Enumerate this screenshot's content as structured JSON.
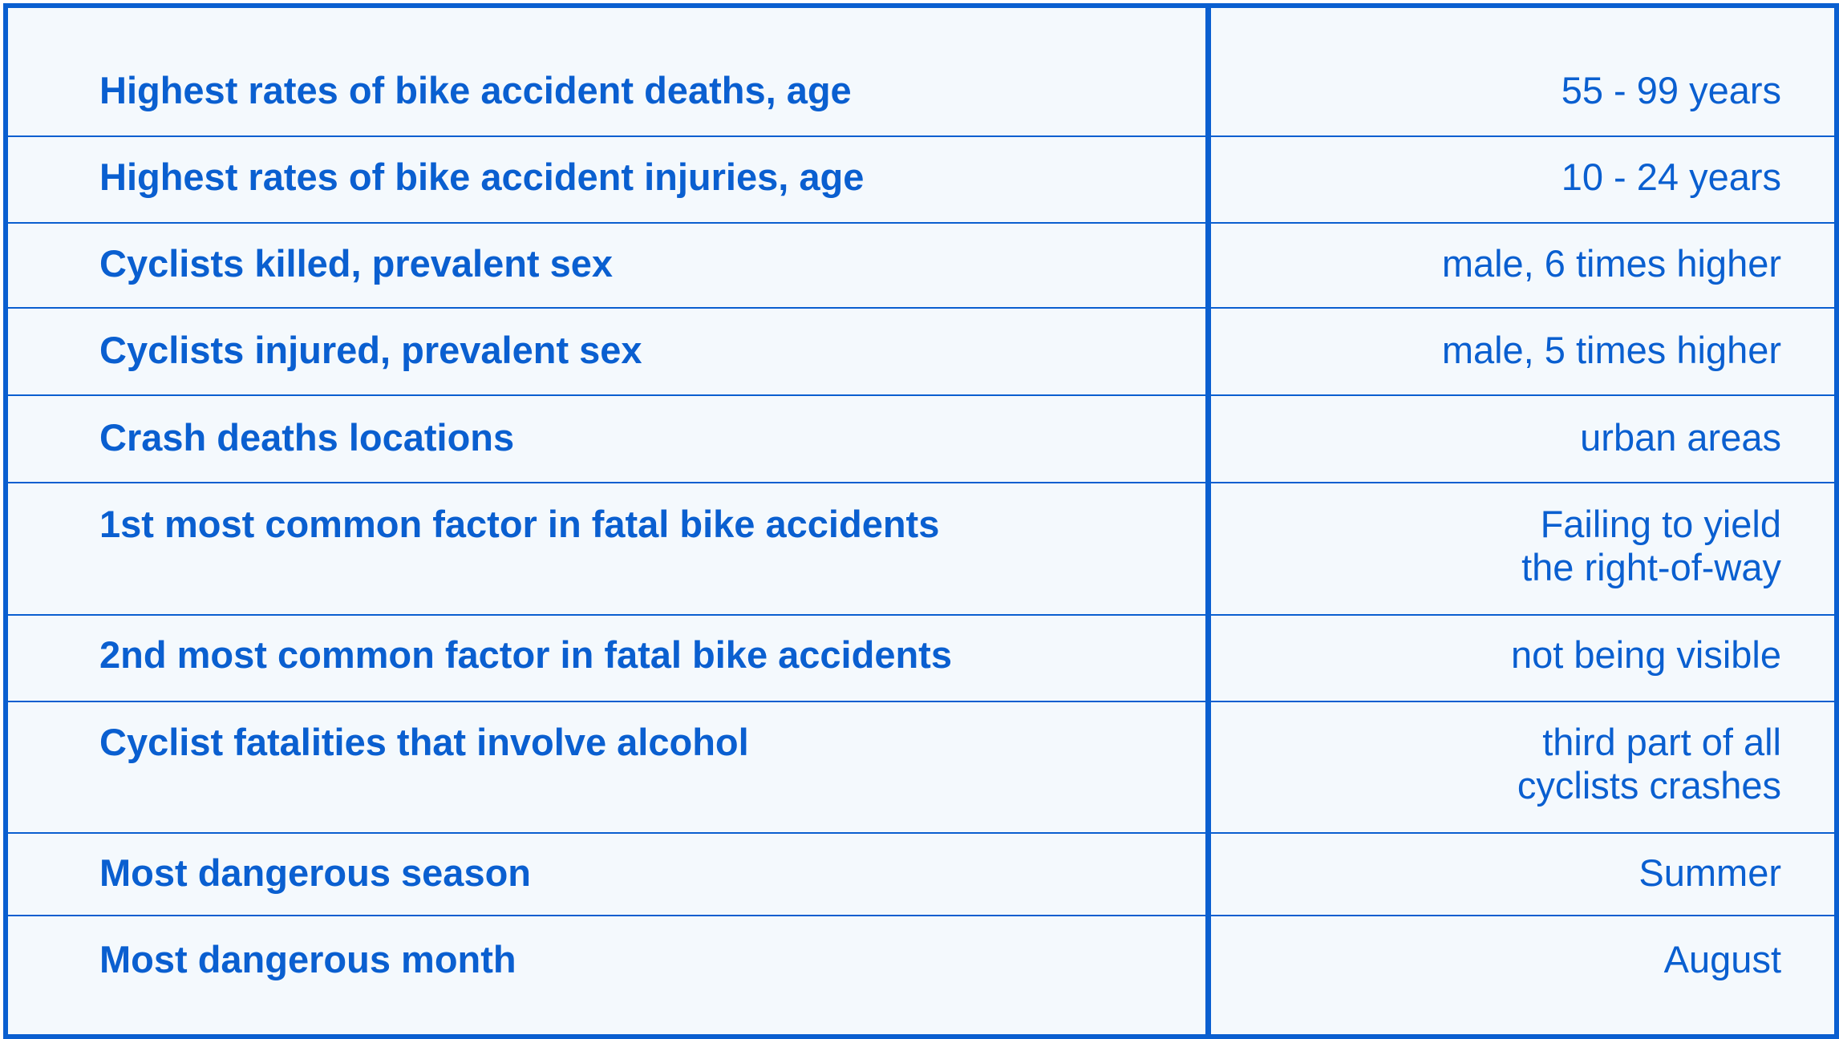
{
  "colors": {
    "accent": "#0a5fd0",
    "background": "#f4f9fd"
  },
  "rows": [
    {
      "label": "Highest rates of bike accident deaths, age",
      "value": "55 - 99 years"
    },
    {
      "label": "Highest rates of bike accident injuries, age",
      "value": "10 - 24 years"
    },
    {
      "label": "Cyclists killed, prevalent sex",
      "value": "male, 6 times higher"
    },
    {
      "label": "Cyclists injured, prevalent sex",
      "value": "male, 5 times higher"
    },
    {
      "label": "Crash deaths locations",
      "value": "urban areas"
    },
    {
      "label": "1st most common factor in fatal bike accidents",
      "value": "Failing to yield\nthe right-of-way"
    },
    {
      "label": "2nd most common factor in fatal bike accidents",
      "value": "not being visible"
    },
    {
      "label": "Cyclist fatalities that involve alcohol",
      "value": "third part of all\ncyclists crashes"
    },
    {
      "label": "Most dangerous season",
      "value": "Summer"
    },
    {
      "label": "Most dangerous month",
      "value": "August"
    }
  ]
}
